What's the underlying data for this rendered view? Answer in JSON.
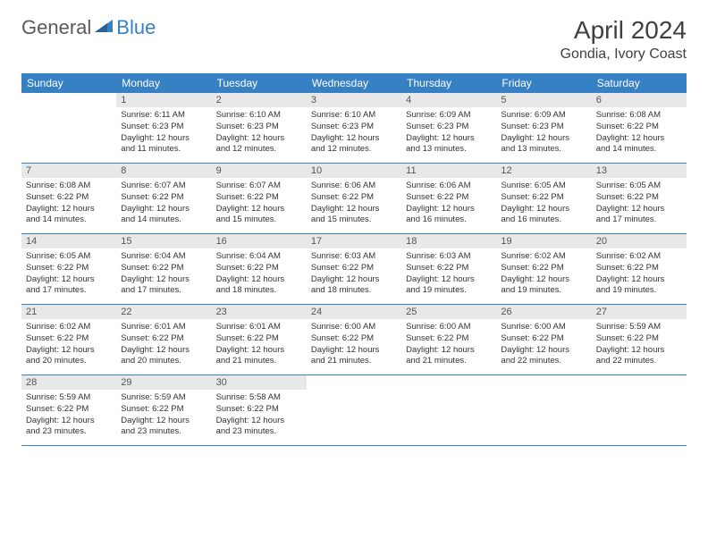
{
  "brand": {
    "word1": "General",
    "word2": "Blue",
    "color_general": "#5a5a5a",
    "color_blue": "#3880c4"
  },
  "header": {
    "month_title": "April 2024",
    "location": "Gondia, Ivory Coast"
  },
  "colors": {
    "header_bg": "#3880c4",
    "daynum_bg": "#e8e8e8",
    "row_border": "#3880c4",
    "text": "#333333",
    "title": "#404040"
  },
  "fonts": {
    "title_size": 28,
    "location_size": 16,
    "weekday_size": 12,
    "daynum_size": 11,
    "body_size": 9.5
  },
  "weekdays": [
    "Sunday",
    "Monday",
    "Tuesday",
    "Wednesday",
    "Thursday",
    "Friday",
    "Saturday"
  ],
  "weeks": [
    [
      null,
      {
        "n": "1",
        "sr": "Sunrise: 6:11 AM",
        "ss": "Sunset: 6:23 PM",
        "d1": "Daylight: 12 hours",
        "d2": "and 11 minutes."
      },
      {
        "n": "2",
        "sr": "Sunrise: 6:10 AM",
        "ss": "Sunset: 6:23 PM",
        "d1": "Daylight: 12 hours",
        "d2": "and 12 minutes."
      },
      {
        "n": "3",
        "sr": "Sunrise: 6:10 AM",
        "ss": "Sunset: 6:23 PM",
        "d1": "Daylight: 12 hours",
        "d2": "and 12 minutes."
      },
      {
        "n": "4",
        "sr": "Sunrise: 6:09 AM",
        "ss": "Sunset: 6:23 PM",
        "d1": "Daylight: 12 hours",
        "d2": "and 13 minutes."
      },
      {
        "n": "5",
        "sr": "Sunrise: 6:09 AM",
        "ss": "Sunset: 6:23 PM",
        "d1": "Daylight: 12 hours",
        "d2": "and 13 minutes."
      },
      {
        "n": "6",
        "sr": "Sunrise: 6:08 AM",
        "ss": "Sunset: 6:22 PM",
        "d1": "Daylight: 12 hours",
        "d2": "and 14 minutes."
      }
    ],
    [
      {
        "n": "7",
        "sr": "Sunrise: 6:08 AM",
        "ss": "Sunset: 6:22 PM",
        "d1": "Daylight: 12 hours",
        "d2": "and 14 minutes."
      },
      {
        "n": "8",
        "sr": "Sunrise: 6:07 AM",
        "ss": "Sunset: 6:22 PM",
        "d1": "Daylight: 12 hours",
        "d2": "and 14 minutes."
      },
      {
        "n": "9",
        "sr": "Sunrise: 6:07 AM",
        "ss": "Sunset: 6:22 PM",
        "d1": "Daylight: 12 hours",
        "d2": "and 15 minutes."
      },
      {
        "n": "10",
        "sr": "Sunrise: 6:06 AM",
        "ss": "Sunset: 6:22 PM",
        "d1": "Daylight: 12 hours",
        "d2": "and 15 minutes."
      },
      {
        "n": "11",
        "sr": "Sunrise: 6:06 AM",
        "ss": "Sunset: 6:22 PM",
        "d1": "Daylight: 12 hours",
        "d2": "and 16 minutes."
      },
      {
        "n": "12",
        "sr": "Sunrise: 6:05 AM",
        "ss": "Sunset: 6:22 PM",
        "d1": "Daylight: 12 hours",
        "d2": "and 16 minutes."
      },
      {
        "n": "13",
        "sr": "Sunrise: 6:05 AM",
        "ss": "Sunset: 6:22 PM",
        "d1": "Daylight: 12 hours",
        "d2": "and 17 minutes."
      }
    ],
    [
      {
        "n": "14",
        "sr": "Sunrise: 6:05 AM",
        "ss": "Sunset: 6:22 PM",
        "d1": "Daylight: 12 hours",
        "d2": "and 17 minutes."
      },
      {
        "n": "15",
        "sr": "Sunrise: 6:04 AM",
        "ss": "Sunset: 6:22 PM",
        "d1": "Daylight: 12 hours",
        "d2": "and 17 minutes."
      },
      {
        "n": "16",
        "sr": "Sunrise: 6:04 AM",
        "ss": "Sunset: 6:22 PM",
        "d1": "Daylight: 12 hours",
        "d2": "and 18 minutes."
      },
      {
        "n": "17",
        "sr": "Sunrise: 6:03 AM",
        "ss": "Sunset: 6:22 PM",
        "d1": "Daylight: 12 hours",
        "d2": "and 18 minutes."
      },
      {
        "n": "18",
        "sr": "Sunrise: 6:03 AM",
        "ss": "Sunset: 6:22 PM",
        "d1": "Daylight: 12 hours",
        "d2": "and 19 minutes."
      },
      {
        "n": "19",
        "sr": "Sunrise: 6:02 AM",
        "ss": "Sunset: 6:22 PM",
        "d1": "Daylight: 12 hours",
        "d2": "and 19 minutes."
      },
      {
        "n": "20",
        "sr": "Sunrise: 6:02 AM",
        "ss": "Sunset: 6:22 PM",
        "d1": "Daylight: 12 hours",
        "d2": "and 19 minutes."
      }
    ],
    [
      {
        "n": "21",
        "sr": "Sunrise: 6:02 AM",
        "ss": "Sunset: 6:22 PM",
        "d1": "Daylight: 12 hours",
        "d2": "and 20 minutes."
      },
      {
        "n": "22",
        "sr": "Sunrise: 6:01 AM",
        "ss": "Sunset: 6:22 PM",
        "d1": "Daylight: 12 hours",
        "d2": "and 20 minutes."
      },
      {
        "n": "23",
        "sr": "Sunrise: 6:01 AM",
        "ss": "Sunset: 6:22 PM",
        "d1": "Daylight: 12 hours",
        "d2": "and 21 minutes."
      },
      {
        "n": "24",
        "sr": "Sunrise: 6:00 AM",
        "ss": "Sunset: 6:22 PM",
        "d1": "Daylight: 12 hours",
        "d2": "and 21 minutes."
      },
      {
        "n": "25",
        "sr": "Sunrise: 6:00 AM",
        "ss": "Sunset: 6:22 PM",
        "d1": "Daylight: 12 hours",
        "d2": "and 21 minutes."
      },
      {
        "n": "26",
        "sr": "Sunrise: 6:00 AM",
        "ss": "Sunset: 6:22 PM",
        "d1": "Daylight: 12 hours",
        "d2": "and 22 minutes."
      },
      {
        "n": "27",
        "sr": "Sunrise: 5:59 AM",
        "ss": "Sunset: 6:22 PM",
        "d1": "Daylight: 12 hours",
        "d2": "and 22 minutes."
      }
    ],
    [
      {
        "n": "28",
        "sr": "Sunrise: 5:59 AM",
        "ss": "Sunset: 6:22 PM",
        "d1": "Daylight: 12 hours",
        "d2": "and 23 minutes."
      },
      {
        "n": "29",
        "sr": "Sunrise: 5:59 AM",
        "ss": "Sunset: 6:22 PM",
        "d1": "Daylight: 12 hours",
        "d2": "and 23 minutes."
      },
      {
        "n": "30",
        "sr": "Sunrise: 5:58 AM",
        "ss": "Sunset: 6:22 PM",
        "d1": "Daylight: 12 hours",
        "d2": "and 23 minutes."
      },
      null,
      null,
      null,
      null
    ]
  ]
}
